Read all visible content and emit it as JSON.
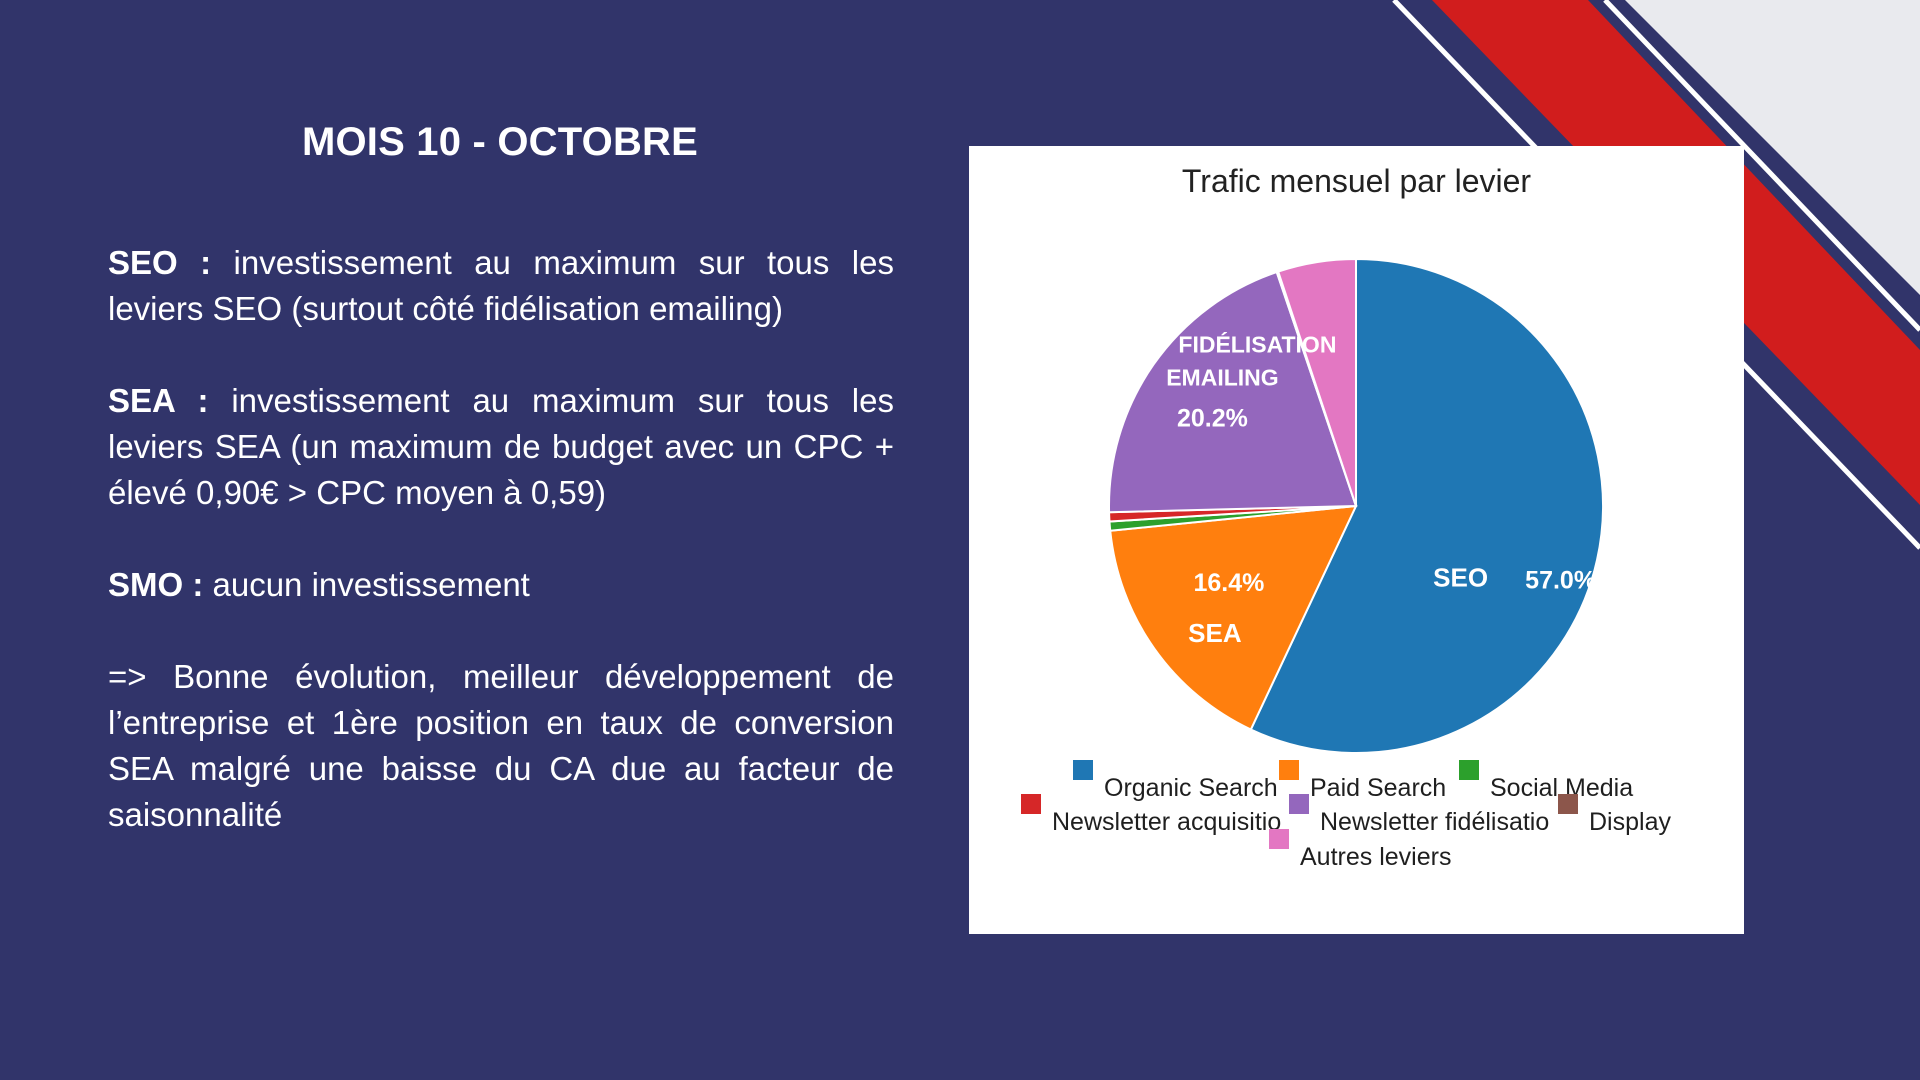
{
  "slide": {
    "title": "MOIS 10 - OCTOBRE",
    "notes": [
      {
        "label": "SEO :",
        "text": "investissement au maximum sur tous les leviers SEO (surtout côté fidélisation emailing)"
      },
      {
        "label": "SEA :",
        "text": "investissement au maximum sur tous les leviers SEA (un maximum de budget avec un CPC + élevé 0,90€ > CPC moyen à 0,59)"
      },
      {
        "label": "SMO :",
        "text": "aucun investissement"
      },
      {
        "label": "",
        "text": "=> Bonne évolution, meilleur développement de l’entreprise et 1ère position en taux de conversion SEA malgré une baisse du CA due au facteur de saisonnalité"
      }
    ]
  },
  "colors": {
    "background": "#31346a",
    "accent_red": "#d11d1d",
    "accent_light": "#e9eaee"
  },
  "chart_data": {
    "type": "pie",
    "title": "Trafic mensuel par levier",
    "categories": [
      "Organic Search",
      "Paid Search",
      "Social Media",
      "Newsletter acquisition",
      "Newsletter fidélisation",
      "Display",
      "Autres leviers"
    ],
    "legend_labels": [
      "Organic Search",
      "Paid Search",
      "Social Media",
      "Newsletter acquisitio",
      "Newsletter fidélisatio",
      "Display",
      "Autres leviers"
    ],
    "values": [
      57.0,
      16.4,
      0.6,
      0.6,
      20.2,
      0.1,
      5.1
    ],
    "colors": [
      "#1f77b4",
      "#ff7f0e",
      "#2ca02c",
      "#d62728",
      "#9467bd",
      "#8c564b",
      "#e377c2"
    ],
    "legend_placement": "bottom",
    "slice_labels": [
      {
        "series": "Organic Search",
        "percent": "57.0%",
        "name": "SEO"
      },
      {
        "series": "Paid Search",
        "percent": "16.4%",
        "name": "SEA"
      },
      {
        "series": "Newsletter fidélisation",
        "percent": "20.2%",
        "name": "FIDÉLISATION EMAILING"
      }
    ]
  }
}
